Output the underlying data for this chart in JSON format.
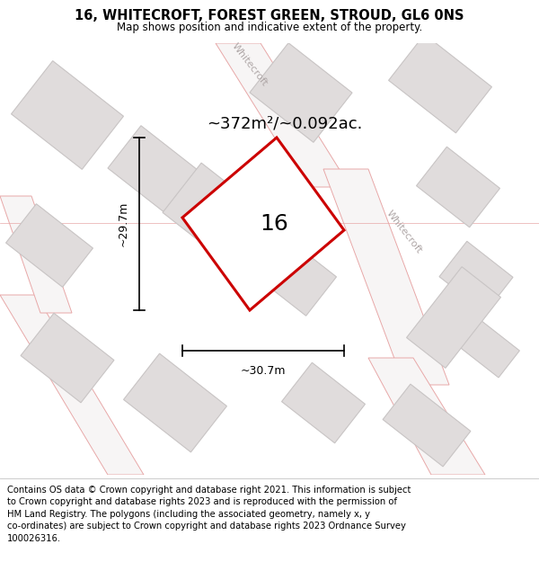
{
  "title": "16, WHITECROFT, FOREST GREEN, STROUD, GL6 0NS",
  "subtitle": "Map shows position and indicative extent of the property.",
  "footer_text": "Contains OS data © Crown copyright and database right 2021. This information is subject\nto Crown copyright and database rights 2023 and is reproduced with the permission of\nHM Land Registry. The polygons (including the associated geometry, namely x, y\nco-ordinates) are subject to Crown copyright and database rights 2023 Ordnance Survey\n100026316.",
  "area_label": "~372m²/~0.092ac.",
  "width_label": "~30.7m",
  "height_label": "~29.7m",
  "plot_number": "16",
  "map_bg": "#f7f5f5",
  "plot_edge_color": "#cc0000",
  "plot_face_color": "#ffffff",
  "road_line_color": "#e8a8a8",
  "building_face_color": "#e0dcdc",
  "building_edge_color": "#c8c4c4",
  "title_fontsize": 10.5,
  "subtitle_fontsize": 8.5,
  "footer_fontsize": 7.2,
  "area_fontsize": 13,
  "dim_label_fontsize": 9,
  "plot_num_fontsize": 18,
  "road_label_color": "#b0a8a8",
  "road_label_fontsize": 8
}
